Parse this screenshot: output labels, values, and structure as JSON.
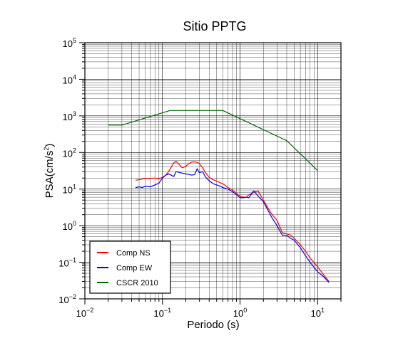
{
  "chart_data": {
    "type": "line",
    "title": "Sitio PPTG",
    "xlabel": "Periodo (s)",
    "ylabel": "PSA(cm/s",
    "ylabel_sup": "2",
    "ylabel_tail": ")",
    "xscale": "log",
    "yscale": "log",
    "xlim": [
      0.01,
      20
    ],
    "ylim": [
      0.01,
      100000
    ],
    "grid": true,
    "legend_position": "bottom-left",
    "x_ticks": [
      {
        "value": 0.01,
        "base": "10",
        "exp": "−2"
      },
      {
        "value": 0.1,
        "base": "10",
        "exp": "−1"
      },
      {
        "value": 1,
        "base": "10",
        "exp": "0"
      },
      {
        "value": 10,
        "base": "10",
        "exp": "1"
      }
    ],
    "y_ticks": [
      {
        "value": 0.01,
        "base": "10",
        "exp": "−2"
      },
      {
        "value": 0.1,
        "base": "10",
        "exp": "−1"
      },
      {
        "value": 1,
        "base": "10",
        "exp": "0"
      },
      {
        "value": 10,
        "base": "10",
        "exp": "1"
      },
      {
        "value": 100,
        "base": "10",
        "exp": "2"
      },
      {
        "value": 1000,
        "base": "10",
        "exp": "3"
      },
      {
        "value": 10000,
        "base": "10",
        "exp": "4"
      },
      {
        "value": 100000,
        "base": "10",
        "exp": "5"
      }
    ],
    "series": [
      {
        "name": "Comp NS",
        "color": "#ff0000",
        "x": [
          0.045,
          0.05,
          0.06,
          0.07,
          0.08,
          0.09,
          0.1,
          0.11,
          0.12,
          0.13,
          0.14,
          0.15,
          0.16,
          0.18,
          0.2,
          0.22,
          0.24,
          0.26,
          0.28,
          0.3,
          0.33,
          0.36,
          0.4,
          0.45,
          0.5,
          0.55,
          0.6,
          0.7,
          0.8,
          0.9,
          1.0,
          1.1,
          1.2,
          1.3,
          1.5,
          1.7,
          2.0,
          2.3,
          2.6,
          3.0,
          3.5,
          4.0,
          4.5,
          5.0,
          6.0,
          7.0,
          8.0,
          10.0,
          12.0,
          14.0
        ],
        "y": [
          17.5,
          18.0,
          19.5,
          19.5,
          20.0,
          19.0,
          21.0,
          24.0,
          30.0,
          40.0,
          52.0,
          57.0,
          50.0,
          38.0,
          42.0,
          50.0,
          55.0,
          55.0,
          54.0,
          50.0,
          38.0,
          28.0,
          21.0,
          18.0,
          16.5,
          15.0,
          14.0,
          11.0,
          9.5,
          7.5,
          6.5,
          6.0,
          6.0,
          7.0,
          8.0,
          9.0,
          5.0,
          3.0,
          2.0,
          1.4,
          0.65,
          0.6,
          0.55,
          0.45,
          0.3,
          0.2,
          0.13,
          0.075,
          0.045,
          0.03
        ]
      },
      {
        "name": "Comp EW",
        "color": "#0000ff",
        "x": [
          0.045,
          0.05,
          0.055,
          0.06,
          0.07,
          0.08,
          0.09,
          0.1,
          0.11,
          0.12,
          0.13,
          0.14,
          0.15,
          0.17,
          0.2,
          0.22,
          0.24,
          0.26,
          0.28,
          0.3,
          0.33,
          0.36,
          0.4,
          0.45,
          0.5,
          0.55,
          0.6,
          0.7,
          0.8,
          0.9,
          1.0,
          1.1,
          1.2,
          1.3,
          1.5,
          1.7,
          2.0,
          2.3,
          2.6,
          3.0,
          3.5,
          4.0,
          4.5,
          5.0,
          6.0,
          7.0,
          8.0,
          10.0,
          12.0,
          14.0
        ],
        "y": [
          11.0,
          11.5,
          11.0,
          12.0,
          11.5,
          13.0,
          14.5,
          20.0,
          24.0,
          26.0,
          24.0,
          22.0,
          30.0,
          28.0,
          26.0,
          25.0,
          24.0,
          25.0,
          36.0,
          28.0,
          30.0,
          21.0,
          17.0,
          14.0,
          13.0,
          12.0,
          11.0,
          10.0,
          8.5,
          7.0,
          5.8,
          5.8,
          6.0,
          5.8,
          9.0,
          6.5,
          4.5,
          2.6,
          1.6,
          1.0,
          0.55,
          0.55,
          0.45,
          0.4,
          0.25,
          0.15,
          0.1,
          0.055,
          0.04,
          0.028
        ]
      },
      {
        "name": "CSCR 2010",
        "color": "#006400",
        "x": [
          0.02,
          0.03,
          0.125,
          0.6,
          4.0,
          10.0
        ],
        "y": [
          560,
          560,
          1400,
          1400,
          210,
          32
        ]
      }
    ]
  }
}
